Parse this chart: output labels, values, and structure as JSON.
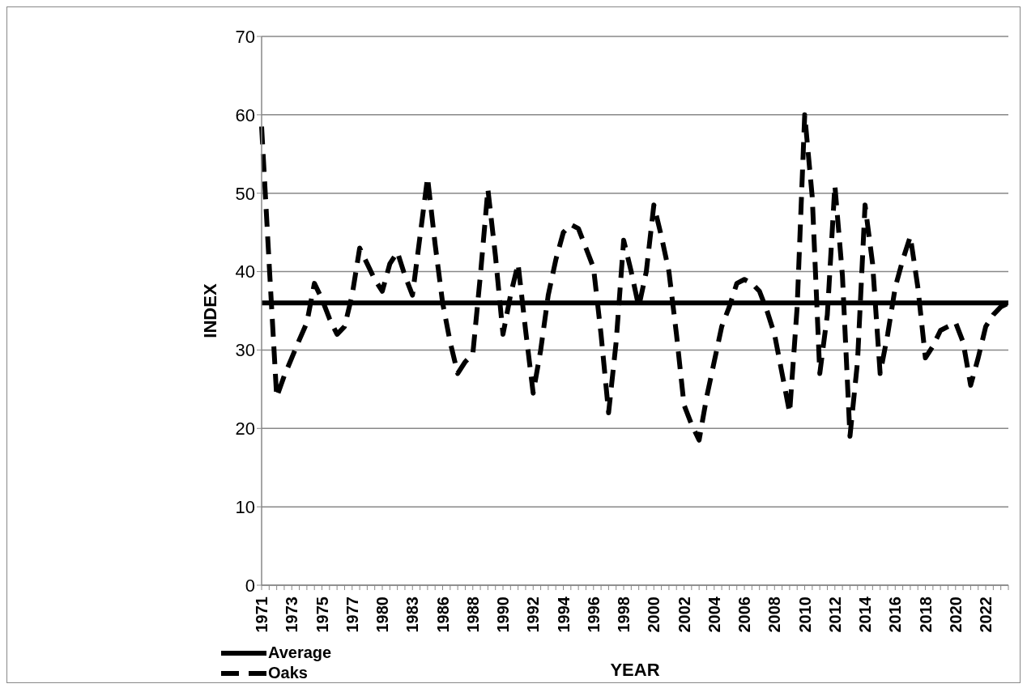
{
  "chart_data": {
    "type": "line",
    "xlabel": "YEAR",
    "ylabel": "INDEX",
    "categories": [
      "1971",
      null,
      null,
      null,
      "1973",
      null,
      null,
      null,
      "1975",
      null,
      null,
      null,
      "1977",
      null,
      null,
      null,
      "1980",
      null,
      null,
      null,
      "1983",
      null,
      null,
      null,
      "1986",
      null,
      null,
      null,
      "1988",
      null,
      null,
      null,
      "1990",
      null,
      null,
      null,
      "1992",
      null,
      null,
      null,
      "1994",
      null,
      null,
      null,
      "1996",
      null,
      null,
      null,
      "1998",
      null,
      null,
      null,
      "2000",
      null,
      null,
      null,
      "2002",
      null,
      null,
      null,
      "2004",
      null,
      null,
      null,
      "2006",
      null,
      null,
      null,
      "2008",
      null,
      null,
      null,
      "2010",
      null,
      null,
      null,
      "2012",
      null,
      null,
      null,
      "2014",
      null,
      null,
      null,
      "2016",
      null,
      null,
      null,
      "2018",
      null,
      null,
      null,
      "2020",
      null,
      null,
      null,
      "2022",
      null,
      null,
      null
    ],
    "series": [
      {
        "name": "Oaks",
        "color": "#000000",
        "line_style": "dashed",
        "values": [
          58.5,
          41,
          24,
          26.7,
          29,
          31.3,
          33.5,
          38.5,
          36.5,
          34,
          32,
          33,
          37,
          43,
          41,
          39,
          37.5,
          41,
          42.5,
          39.5,
          37,
          44.5,
          52,
          43.5,
          36,
          31,
          27,
          28.5,
          29.5,
          39.5,
          50.5,
          42,
          32,
          37,
          41,
          32.5,
          24.5,
          30,
          37,
          41.5,
          45,
          46,
          45.5,
          43,
          40.5,
          32,
          22,
          31,
          44,
          40,
          35.5,
          40,
          48.5,
          44.5,
          40,
          32,
          23,
          20.5,
          18.5,
          24,
          28.5,
          33,
          35.5,
          38.5,
          39,
          38.5,
          37.5,
          35,
          32,
          27,
          22,
          35.5,
          60,
          49.5,
          27,
          34.5,
          51,
          39.5,
          19,
          28.5,
          48.5,
          41,
          27,
          32,
          38,
          41.5,
          44.5,
          38,
          29,
          30.5,
          32.5,
          33,
          33.5,
          31,
          25.5,
          29,
          33,
          34.5,
          35.5,
          36
        ]
      },
      {
        "name": "Average",
        "color": "#000000",
        "line_style": "solid",
        "values": [
          36,
          36,
          36,
          36,
          36,
          36,
          36,
          36,
          36,
          36,
          36,
          36,
          36,
          36,
          36,
          36,
          36,
          36,
          36,
          36,
          36,
          36,
          36,
          36,
          36,
          36,
          36,
          36,
          36,
          36,
          36,
          36,
          36,
          36,
          36,
          36,
          36,
          36,
          36,
          36,
          36,
          36,
          36,
          36,
          36,
          36,
          36,
          36,
          36,
          36,
          36,
          36,
          36,
          36,
          36,
          36,
          36,
          36,
          36,
          36,
          36,
          36,
          36,
          36,
          36,
          36,
          36,
          36,
          36,
          36,
          36,
          36,
          36,
          36,
          36,
          36,
          36,
          36,
          36,
          36,
          36,
          36,
          36,
          36,
          36,
          36,
          36,
          36,
          36,
          36,
          36,
          36,
          36,
          36,
          36,
          36,
          36,
          36,
          36,
          36
        ]
      }
    ],
    "ylim": [
      0,
      70
    ],
    "yticks": [
      0,
      10,
      20,
      30,
      40,
      50,
      60,
      70
    ],
    "grid": "y",
    "legend": "bottom left",
    "marker": "none"
  }
}
